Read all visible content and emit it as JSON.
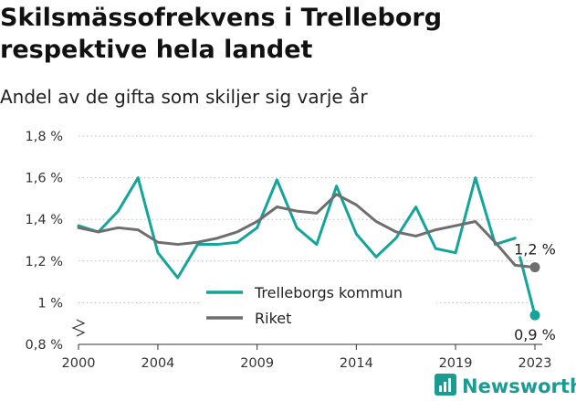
{
  "header": {
    "title": "Skilsmässofrekvens i Trelleborg respektive hela landet",
    "subtitle": "Andel av de gifta som skiljer sig varje år"
  },
  "brand": {
    "name": "Newsworthy",
    "color": "#1a9c93"
  },
  "chart_data": {
    "type": "line",
    "x": [
      2000,
      2001,
      2002,
      2003,
      2004,
      2005,
      2006,
      2007,
      2008,
      2009,
      2010,
      2011,
      2012,
      2013,
      2014,
      2015,
      2016,
      2017,
      2018,
      2019,
      2020,
      2021,
      2022,
      2023
    ],
    "series": [
      {
        "name": "Trelleborgs kommun",
        "color": "#13a59a",
        "values": [
          1.37,
          1.34,
          1.44,
          1.6,
          1.24,
          1.12,
          1.28,
          1.28,
          1.29,
          1.36,
          1.59,
          1.36,
          1.28,
          1.56,
          1.33,
          1.22,
          1.31,
          1.46,
          1.26,
          1.24,
          1.6,
          1.28,
          1.31,
          0.94
        ],
        "end_label": "0,9 %"
      },
      {
        "name": "Riket",
        "color": "#6e6e6e",
        "values": [
          1.36,
          1.34,
          1.36,
          1.35,
          1.29,
          1.28,
          1.29,
          1.31,
          1.34,
          1.39,
          1.46,
          1.44,
          1.43,
          1.52,
          1.47,
          1.39,
          1.34,
          1.32,
          1.35,
          1.37,
          1.39,
          1.29,
          1.18,
          1.17
        ],
        "end_label": "1,2 %"
      }
    ],
    "y_ticks": [
      {
        "value": 0.8,
        "label": "0,8 %"
      },
      {
        "value": 1.0,
        "label": "1 %"
      },
      {
        "value": 1.2,
        "label": "1,2 %"
      },
      {
        "value": 1.4,
        "label": "1,4 %"
      },
      {
        "value": 1.6,
        "label": "1,6 %"
      },
      {
        "value": 1.8,
        "label": "1,8 %"
      }
    ],
    "x_ticks": [
      2000,
      2004,
      2009,
      2014,
      2019,
      2023
    ],
    "xlim": [
      2000,
      2023
    ],
    "ylim": [
      0.8,
      1.8
    ],
    "y_axis_break": true,
    "grid": "horizontal-dotted",
    "legend_position": "center-bottom"
  }
}
